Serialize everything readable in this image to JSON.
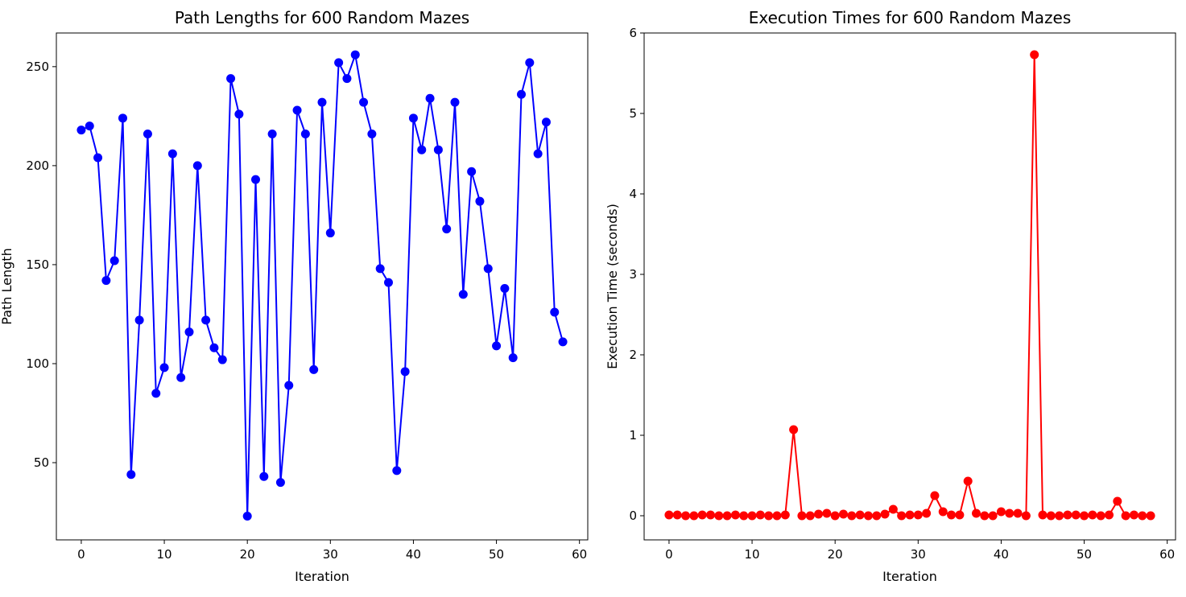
{
  "chart_data": [
    {
      "type": "line",
      "title": "Path Lengths for 600 Random Mazes",
      "xlabel": "Iteration",
      "ylabel": "Path Length",
      "xlim": [
        -3,
        61
      ],
      "ylim": [
        11,
        267
      ],
      "xticks": [
        0,
        10,
        20,
        30,
        40,
        50,
        60
      ],
      "yticks": [
        50,
        100,
        150,
        200,
        250
      ],
      "grid": false,
      "color": "#0000ff",
      "marker": "circle",
      "x": [
        0,
        1,
        2,
        3,
        4,
        5,
        6,
        7,
        8,
        9,
        10,
        11,
        12,
        13,
        14,
        15,
        16,
        17,
        18,
        19,
        20,
        21,
        22,
        23,
        24,
        25,
        26,
        27,
        28,
        29,
        30,
        31,
        32,
        33,
        34,
        35,
        36,
        37,
        38,
        39,
        40,
        41,
        42,
        43,
        44,
        45,
        46,
        47,
        48,
        49,
        50,
        51,
        52,
        53,
        54,
        55,
        56,
        57,
        58
      ],
      "values": [
        218,
        220,
        204,
        142,
        152,
        224,
        44,
        122,
        216,
        85,
        98,
        206,
        93,
        116,
        200,
        122,
        108,
        102,
        244,
        226,
        23,
        193,
        43,
        216,
        40,
        89,
        228,
        216,
        97,
        232,
        166,
        252,
        244,
        256,
        232,
        216,
        148,
        141,
        46,
        96,
        224,
        208,
        234,
        208,
        168,
        232,
        135,
        197,
        182,
        148,
        109,
        138,
        103,
        236,
        252,
        206,
        222,
        126,
        111
      ]
    },
    {
      "type": "line",
      "title": "Execution Times for 600 Random Mazes",
      "xlabel": "Iteration",
      "ylabel": "Execution Time (seconds)",
      "xlim": [
        -3,
        61
      ],
      "ylim": [
        -0.3,
        6.0
      ],
      "xticks": [
        0,
        10,
        20,
        30,
        40,
        50,
        60
      ],
      "yticks": [
        0,
        1,
        2,
        3,
        4,
        5,
        6
      ],
      "grid": false,
      "color": "#ff0000",
      "marker": "circle",
      "x": [
        0,
        1,
        2,
        3,
        4,
        5,
        6,
        7,
        8,
        9,
        10,
        11,
        12,
        13,
        14,
        15,
        16,
        17,
        18,
        19,
        20,
        21,
        22,
        23,
        24,
        25,
        26,
        27,
        28,
        29,
        30,
        31,
        32,
        33,
        34,
        35,
        36,
        37,
        38,
        39,
        40,
        41,
        42,
        43,
        44,
        45,
        46,
        47,
        48,
        49,
        50,
        51,
        52,
        53,
        54,
        55,
        56,
        57,
        58
      ],
      "values": [
        0.01,
        0.01,
        0.0,
        0.0,
        0.01,
        0.01,
        0.0,
        0.0,
        0.01,
        0.0,
        0.0,
        0.01,
        0.0,
        0.0,
        0.01,
        1.07,
        0.0,
        0.0,
        0.02,
        0.03,
        0.0,
        0.02,
        0.0,
        0.01,
        0.0,
        0.0,
        0.02,
        0.08,
        0.0,
        0.01,
        0.01,
        0.03,
        0.25,
        0.05,
        0.01,
        0.01,
        0.43,
        0.03,
        0.0,
        0.0,
        0.05,
        0.03,
        0.03,
        0.0,
        5.73,
        0.01,
        0.0,
        0.0,
        0.01,
        0.01,
        0.0,
        0.01,
        0.0,
        0.01,
        0.18,
        0.0,
        0.01,
        0.0,
        0.0
      ]
    }
  ]
}
